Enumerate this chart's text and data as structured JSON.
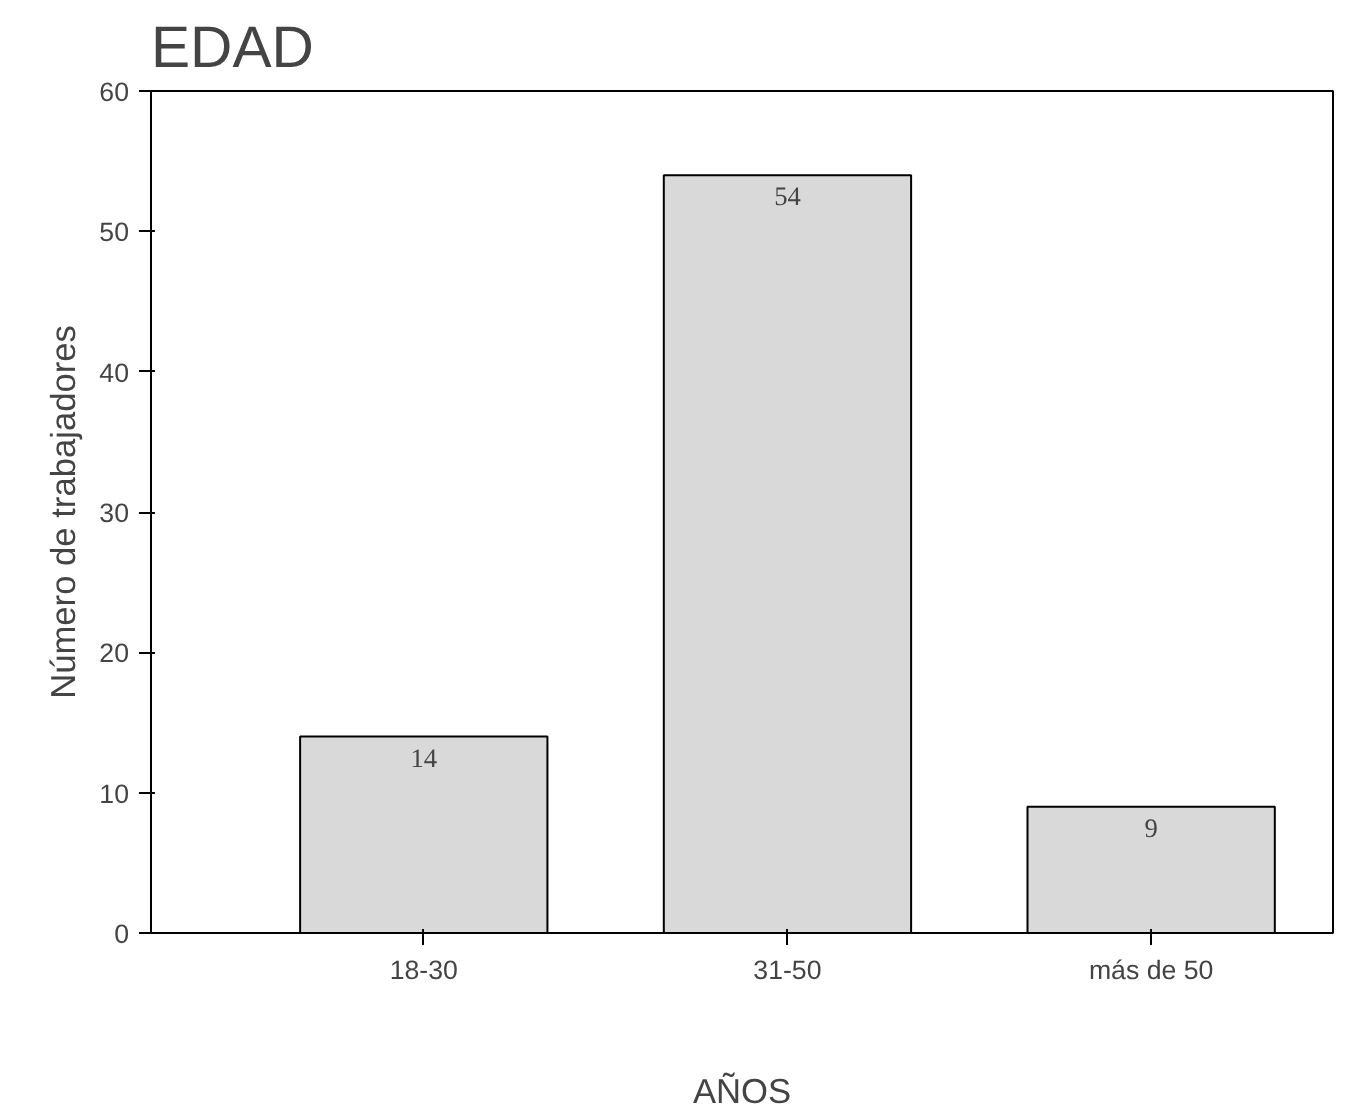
{
  "chart_data": {
    "type": "bar",
    "title": "EDAD",
    "xlabel": "AÑOS",
    "ylabel": "Número de trabajadores",
    "categories": [
      "18-30",
      "31-50",
      "más de 50"
    ],
    "values": [
      14,
      54,
      9
    ],
    "color": "#d9d9d9",
    "ylim": [
      0,
      60
    ],
    "yticks": [
      0,
      10,
      20,
      30,
      40,
      50,
      60
    ],
    "grid": false,
    "data_labels": true
  }
}
